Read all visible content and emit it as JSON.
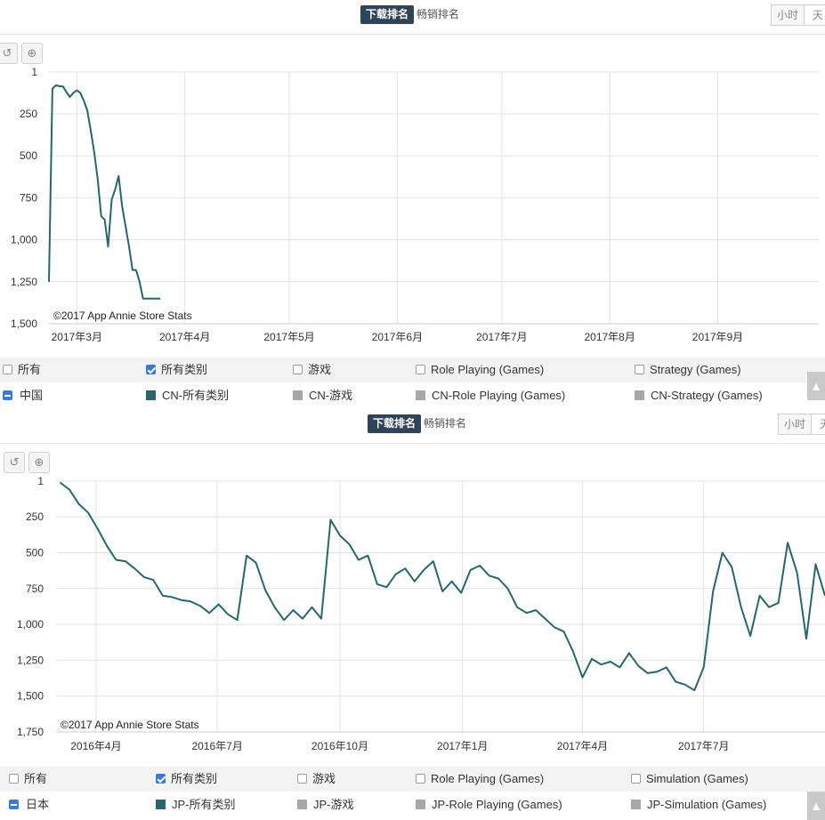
{
  "colors": {
    "line": "#27666a",
    "tab_active_bg": "#2e4458",
    "grey_swatch": "#a7a7a7",
    "checkbox_blue": "#3a7bd5"
  },
  "icons": {
    "reset": "undo-icon",
    "zoom": "zoom-in-icon",
    "scroll": "chevron-up-icon"
  },
  "panels": [
    {
      "tabs": {
        "active": "下载排名",
        "inactive": "畅销排名"
      },
      "granularity": [
        "小时",
        "天"
      ],
      "legend": {
        "row1": [
          "所有",
          "所有类别",
          "游戏",
          "Role Playing (Games)",
          "Strategy (Games)"
        ],
        "row1_checked": [
          false,
          true,
          false,
          false,
          false
        ],
        "row2_region": "中国",
        "row2": [
          "CN-所有类别",
          "CN-游戏",
          "CN-Role Playing (Games)",
          "CN-Strategy (Games)"
        ]
      }
    },
    {
      "tabs": {
        "active": "下载排名",
        "inactive": "畅销排名"
      },
      "granularity": [
        "小时",
        "天"
      ],
      "legend": {
        "row1": [
          "所有",
          "所有类别",
          "游戏",
          "Role Playing (Games)",
          "Simulation (Games)"
        ],
        "row1_checked": [
          false,
          true,
          false,
          false,
          false
        ],
        "row2_region": "日本",
        "row2": [
          "JP-所有类别",
          "JP-游戏",
          "JP-Role Playing (Games)",
          "JP-Simulation (Games)"
        ]
      }
    }
  ],
  "chart_data": [
    {
      "type": "line",
      "credit": "©2017 App Annie Store Stats",
      "y_reversed": true,
      "ylim": [
        1,
        1500
      ],
      "yticks": [
        1,
        250,
        500,
        750,
        1000,
        1250,
        1500
      ],
      "yticklabels": [
        "1",
        "250",
        "500",
        "750",
        "1,000",
        "1,250",
        "1,500"
      ],
      "xlim": [
        "2017-02-21",
        "2017-09-30"
      ],
      "xticks": [
        "2017-03-01",
        "2017-04-01",
        "2017-05-01",
        "2017-06-01",
        "2017-07-01",
        "2017-08-01",
        "2017-09-01"
      ],
      "xticklabels": [
        "2017年3月",
        "2017年4月",
        "2017年5月",
        "2017年6月",
        "2017年7月",
        "2017年8月",
        "2017年9月"
      ],
      "series": [
        {
          "name": "CN-所有类别",
          "x": [
            "2017-02-21",
            "2017-02-22",
            "2017-02-23",
            "2017-02-24",
            "2017-02-25",
            "2017-02-26",
            "2017-02-27",
            "2017-02-28",
            "2017-03-01",
            "2017-03-02",
            "2017-03-03",
            "2017-03-04",
            "2017-03-05",
            "2017-03-06",
            "2017-03-07",
            "2017-03-08",
            "2017-03-09",
            "2017-03-10",
            "2017-03-11",
            "2017-03-12",
            "2017-03-13",
            "2017-03-14",
            "2017-03-15",
            "2017-03-16",
            "2017-03-17",
            "2017-03-18",
            "2017-03-19",
            "2017-03-20",
            "2017-03-21",
            "2017-03-22",
            "2017-03-23",
            "2017-03-24",
            "2017-03-25"
          ],
          "y": [
            1250,
            100,
            80,
            85,
            87,
            120,
            150,
            125,
            110,
            125,
            170,
            230,
            350,
            480,
            640,
            860,
            880,
            1040,
            760,
            700,
            620,
            800,
            920,
            1040,
            1180,
            1180,
            1250,
            1350,
            1350,
            1350,
            1350,
            1350,
            1350
          ]
        }
      ]
    },
    {
      "type": "line",
      "credit": "©2017 App Annie Store Stats",
      "y_reversed": true,
      "ylim": [
        1,
        1750
      ],
      "yticks": [
        1,
        250,
        500,
        750,
        1000,
        1250,
        1500,
        1750
      ],
      "yticklabels": [
        "1",
        "250",
        "500",
        "750",
        "1,000",
        "1,250",
        "1,500",
        "1,750"
      ],
      "xlim": [
        "2016-03-02",
        "2017-09-30"
      ],
      "xticks": [
        "2016-04-01",
        "2016-07-01",
        "2016-10-01",
        "2017-01-01",
        "2017-04-01",
        "2017-07-01"
      ],
      "xticklabels": [
        "2016年4月",
        "2016年7月",
        "2016年10月",
        "2017年1月",
        "2017年4月",
        "2017年7月"
      ],
      "series": [
        {
          "name": "JP-所有类别",
          "x": [
            "2016-03-05",
            "2016-03-12",
            "2016-03-19",
            "2016-03-26",
            "2016-04-02",
            "2016-04-09",
            "2016-04-16",
            "2016-04-23",
            "2016-04-30",
            "2016-05-07",
            "2016-05-14",
            "2016-05-21",
            "2016-05-28",
            "2016-06-04",
            "2016-06-11",
            "2016-06-18",
            "2016-06-25",
            "2016-07-02",
            "2016-07-09",
            "2016-07-16",
            "2016-07-23",
            "2016-07-30",
            "2016-08-06",
            "2016-08-13",
            "2016-08-20",
            "2016-08-27",
            "2016-09-03",
            "2016-09-10",
            "2016-09-17",
            "2016-09-24",
            "2016-10-01",
            "2016-10-08",
            "2016-10-15",
            "2016-10-22",
            "2016-10-29",
            "2016-11-05",
            "2016-11-12",
            "2016-11-19",
            "2016-11-26",
            "2016-12-03",
            "2016-12-10",
            "2016-12-17",
            "2016-12-24",
            "2016-12-31",
            "2017-01-07",
            "2017-01-14",
            "2017-01-21",
            "2017-01-28",
            "2017-02-04",
            "2017-02-11",
            "2017-02-18",
            "2017-02-25",
            "2017-03-04",
            "2017-03-11",
            "2017-03-18",
            "2017-03-25",
            "2017-04-01",
            "2017-04-08",
            "2017-04-15",
            "2017-04-22",
            "2017-04-29",
            "2017-05-06",
            "2017-05-13",
            "2017-05-20",
            "2017-05-27",
            "2017-06-03",
            "2017-06-10",
            "2017-06-17",
            "2017-06-24",
            "2017-07-01",
            "2017-07-08",
            "2017-07-15",
            "2017-07-22",
            "2017-07-29",
            "2017-08-05",
            "2017-08-12",
            "2017-08-19",
            "2017-08-26",
            "2017-09-02",
            "2017-09-09",
            "2017-09-16",
            "2017-09-23",
            "2017-09-30"
          ],
          "y": [
            10,
            60,
            160,
            220,
            330,
            450,
            550,
            560,
            610,
            670,
            690,
            800,
            810,
            830,
            840,
            870,
            920,
            860,
            930,
            970,
            520,
            570,
            760,
            880,
            970,
            900,
            960,
            880,
            960,
            270,
            380,
            440,
            550,
            520,
            720,
            740,
            650,
            610,
            700,
            620,
            560,
            770,
            700,
            780,
            620,
            590,
            660,
            680,
            750,
            880,
            920,
            900,
            960,
            1020,
            1050,
            1190,
            1370,
            1240,
            1280,
            1260,
            1300,
            1200,
            1290,
            1340,
            1330,
            1300,
            1400,
            1420,
            1460,
            1300,
            770,
            500,
            600,
            880,
            1080,
            800,
            880,
            850,
            430,
            640,
            1100,
            580,
            800
          ]
        }
      ]
    }
  ]
}
